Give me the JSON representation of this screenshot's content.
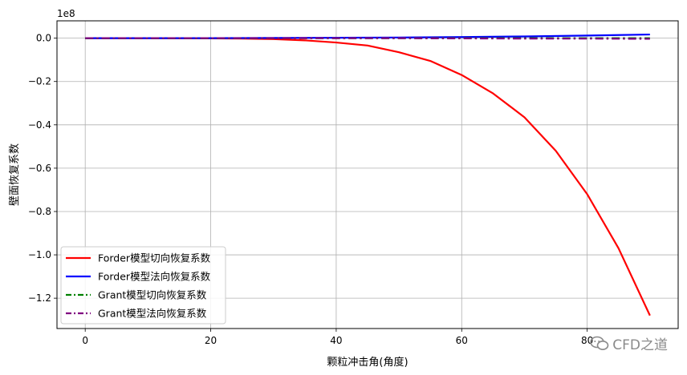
{
  "chart_data": {
    "type": "line",
    "xlabel": "颗粒冲击角(角度)",
    "ylabel": "壁面恢复系数",
    "offset_text": "1e8",
    "xlim": [
      -4.5,
      94.5
    ],
    "ylim": [
      -1.34,
      0.08
    ],
    "xticks": [
      0,
      20,
      40,
      60,
      80
    ],
    "yticks": [
      0.0,
      -0.2,
      -0.4,
      -0.6,
      -0.8,
      -1.0,
      -1.2
    ],
    "ytick_labels": [
      "0.0",
      "−0.2",
      "−0.4",
      "−0.6",
      "−0.8",
      "−1.0",
      "−1.2"
    ],
    "grid": true,
    "legend_position": "lower-left",
    "series": [
      {
        "name": "Forder模型切向恢复系数",
        "color": "#ff0000",
        "style": "solid",
        "x": [
          0,
          10,
          20,
          25,
          30,
          35,
          40,
          45,
          50,
          55,
          60,
          65,
          70,
          75,
          80,
          85,
          90
        ],
        "y": [
          0.0,
          0.0,
          -0.001,
          -0.002,
          -0.004,
          -0.01,
          -0.02,
          -0.034,
          -0.065,
          -0.105,
          -0.17,
          -0.255,
          -0.365,
          -0.52,
          -0.72,
          -0.97,
          -1.28
        ]
      },
      {
        "name": "Forder模型法向恢复系数",
        "color": "#0000ff",
        "style": "solid",
        "x": [
          0,
          10,
          20,
          30,
          40,
          50,
          60,
          70,
          80,
          90
        ],
        "y": [
          0.0,
          0.0,
          0.0,
          0.001,
          0.002,
          0.003,
          0.005,
          0.008,
          0.012,
          0.017
        ]
      },
      {
        "name": "Grant模型切向恢复系数",
        "color": "#008000",
        "style": "dashdot",
        "x": [
          0,
          10,
          20,
          30,
          40,
          50,
          60,
          70,
          80,
          90
        ],
        "y": [
          0.0,
          0.0,
          0.0,
          0.0,
          0.0,
          0.0,
          0.0,
          0.0,
          0.0,
          0.0
        ]
      },
      {
        "name": "Grant模型法向恢复系数",
        "color": "#800080",
        "style": "dashdot",
        "x": [
          0,
          10,
          20,
          30,
          40,
          50,
          60,
          70,
          80,
          90
        ],
        "y": [
          0.0,
          0.0,
          0.0,
          0.0,
          0.0,
          0.0,
          -0.001,
          -0.002,
          -0.002,
          -0.003
        ]
      }
    ]
  },
  "watermark": {
    "text": "CFD之道",
    "icon": "wechat-icon"
  }
}
